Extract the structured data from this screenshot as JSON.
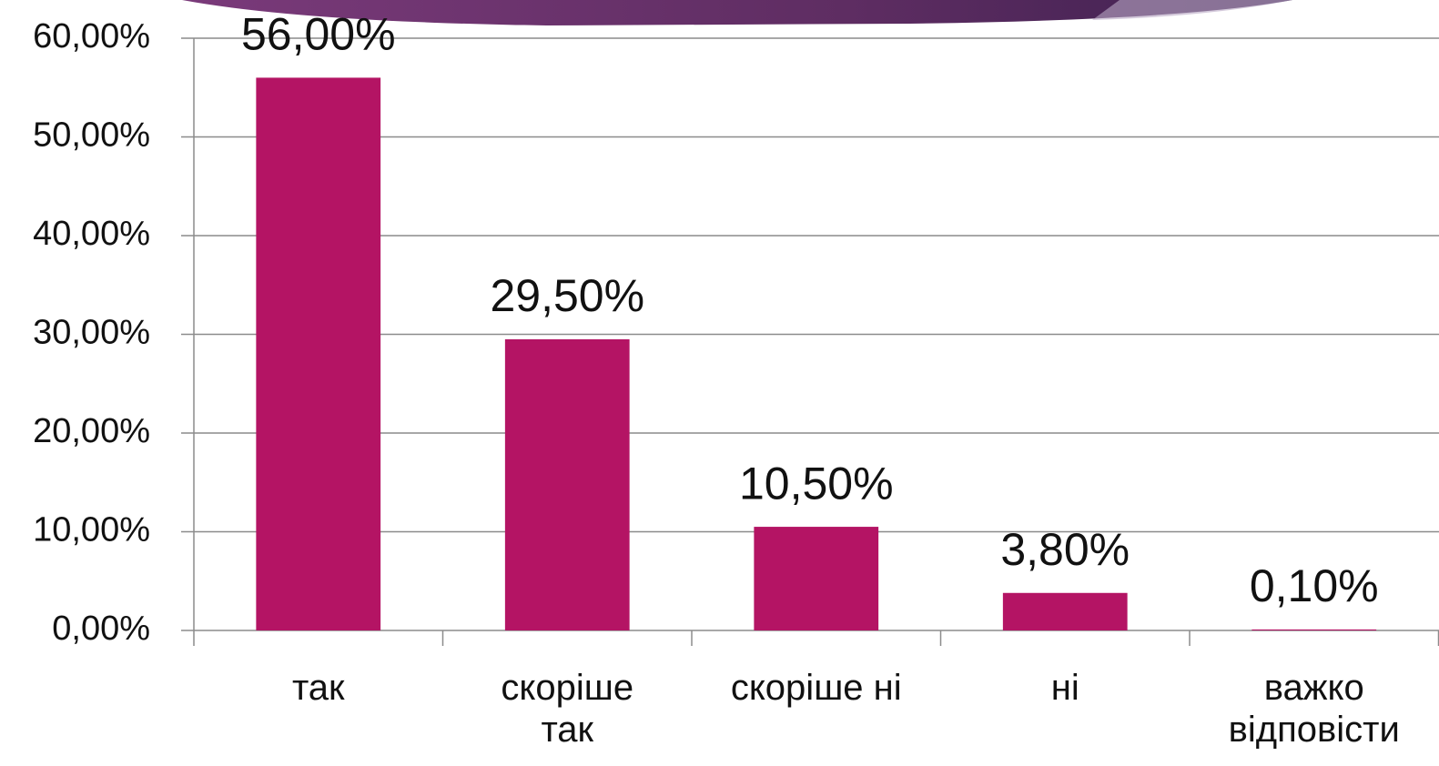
{
  "chart_data": {
    "type": "bar",
    "categories": [
      "так",
      "скоріше так",
      "скоріше ні",
      "ні",
      "важко відповісти"
    ],
    "values": [
      56,
      29.5,
      10.5,
      3.8,
      0.1
    ],
    "value_labels": [
      "56,00%",
      "29,50%",
      "10,50%",
      "3,80%",
      "0,10%"
    ],
    "color": "#b41464",
    "ylim": [
      0,
      60
    ],
    "yticks": [
      {
        "value": 0,
        "label": "0,00%"
      },
      {
        "value": 10,
        "label": "10,00%"
      },
      {
        "value": 20,
        "label": "20,00%"
      },
      {
        "value": 30,
        "label": "30,00%"
      },
      {
        "value": 40,
        "label": "40,00%"
      },
      {
        "value": 50,
        "label": "50,00%"
      },
      {
        "value": 60,
        "label": "60,00%"
      }
    ],
    "grid": true
  }
}
